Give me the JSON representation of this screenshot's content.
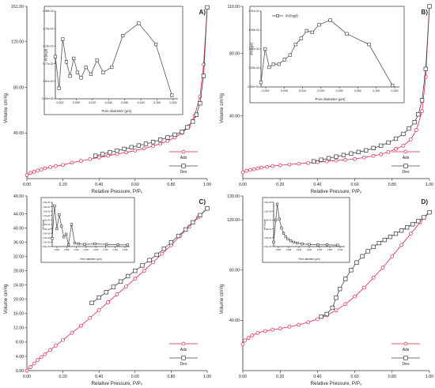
{
  "colors": {
    "ads": "#e0234a",
    "des": "#333333"
  },
  "chart_data": [
    {
      "type": "line",
      "panel_label": "A)",
      "xlabel": "Relative Pressure, P/P₀",
      "ylabel": "Volume cm³/g",
      "xlim": [
        0,
        1
      ],
      "ylim": [
        0,
        151
      ],
      "x_ticks": [
        "0.00",
        "0.20",
        "0.40",
        "0.60",
        "0.80",
        "1.00"
      ],
      "y_ticks": [
        {
          "v": 40,
          "t": "40.00"
        },
        {
          "v": 80,
          "t": "80.00"
        },
        {
          "v": 120,
          "t": "120.00"
        },
        {
          "v": 151,
          "t": "151.00"
        }
      ],
      "legend": {
        "position": "bottom-right",
        "ads": "Ads",
        "des": "Des"
      },
      "series": [
        {
          "key": "ads",
          "name": "Ads",
          "x": [
            0.0,
            0.02,
            0.04,
            0.06,
            0.08,
            0.1,
            0.13,
            0.16,
            0.2,
            0.25,
            0.3,
            0.35,
            0.4,
            0.45,
            0.5,
            0.55,
            0.6,
            0.65,
            0.7,
            0.74,
            0.78,
            0.82,
            0.86,
            0.9,
            0.93,
            0.96,
            0.98,
            1.0
          ],
          "y": [
            3,
            5,
            6,
            7,
            8,
            9,
            10,
            11,
            12,
            14,
            15.5,
            17,
            18.5,
            20,
            21.5,
            23,
            24.5,
            26.5,
            28.5,
            30.5,
            33,
            36,
            40,
            46,
            55,
            72,
            100,
            150
          ]
        },
        {
          "key": "des",
          "name": "Des",
          "x": [
            0.38,
            0.42,
            0.46,
            0.5,
            0.54,
            0.58,
            0.62,
            0.66,
            0.7,
            0.74,
            0.78,
            0.82,
            0.86,
            0.89,
            0.92,
            0.94,
            0.96,
            0.98,
            1.0
          ],
          "y": [
            20,
            21.5,
            23,
            24.5,
            26,
            27.5,
            29,
            30.5,
            32,
            34,
            36,
            38.5,
            41,
            45,
            50,
            56,
            66,
            90,
            150
          ]
        }
      ],
      "inset": {
        "ylabel": "dV(logd)",
        "xlabel": "Pore diameter (µm)",
        "y_ticks": [
          "2.88e-01",
          "1.73e-01",
          "1.15e-01",
          "5.77e-02",
          "3.51e-02",
          "0.00e+00"
        ],
        "x_ticks": [
          "0.002",
          "0.005",
          "0.010",
          "0.040",
          "0.050",
          "0.100",
          "0.200",
          "0.300"
        ],
        "points": [
          [
            0.0,
            0.48
          ],
          [
            0.03,
            0.12
          ],
          [
            0.06,
            0.68
          ],
          [
            0.09,
            0.42
          ],
          [
            0.12,
            0.26
          ],
          [
            0.15,
            0.46
          ],
          [
            0.18,
            0.3
          ],
          [
            0.21,
            0.24
          ],
          [
            0.25,
            0.36
          ],
          [
            0.29,
            0.28
          ],
          [
            0.34,
            0.44
          ],
          [
            0.39,
            0.3
          ],
          [
            0.46,
            0.36
          ],
          [
            0.55,
            0.72
          ],
          [
            0.68,
            0.86
          ],
          [
            0.82,
            0.62
          ],
          [
            0.95,
            0.04
          ]
        ]
      }
    },
    {
      "type": "line",
      "panel_label": "B)",
      "xlabel": "Relative Pressure, P/P₀",
      "ylabel": "Volume cm³/g",
      "xlim": [
        0,
        1
      ],
      "ylim": [
        0,
        110
      ],
      "x_ticks": [
        "0.00",
        "0.20",
        "0.40",
        "0.60",
        "0.80",
        "1.00"
      ],
      "y_ticks": [
        {
          "v": 40,
          "t": "40.00"
        },
        {
          "v": 80,
          "t": "80.00"
        },
        {
          "v": 110,
          "t": "110.00"
        }
      ],
      "legend": {
        "position": "bottom-right",
        "ads": "Ads",
        "des": "Des"
      },
      "series": [
        {
          "key": "ads",
          "name": "Ads",
          "x": [
            0.0,
            0.02,
            0.04,
            0.06,
            0.08,
            0.1,
            0.13,
            0.16,
            0.2,
            0.25,
            0.3,
            0.35,
            0.4,
            0.45,
            0.5,
            0.55,
            0.6,
            0.65,
            0.7,
            0.74,
            0.78,
            0.82,
            0.86,
            0.9,
            0.93,
            0.96,
            0.98,
            1.0
          ],
          "y": [
            4,
            5,
            5.5,
            6,
            6.5,
            7,
            7.5,
            8,
            8.5,
            9,
            9.5,
            10,
            10.5,
            11,
            11.5,
            12,
            12.5,
            13.5,
            14.5,
            15.5,
            17,
            19,
            21,
            25,
            31,
            43,
            65,
            110
          ]
        },
        {
          "key": "des",
          "name": "Des",
          "x": [
            0.38,
            0.42,
            0.46,
            0.5,
            0.54,
            0.58,
            0.62,
            0.66,
            0.7,
            0.74,
            0.78,
            0.82,
            0.86,
            0.89,
            0.92,
            0.94,
            0.96,
            0.98,
            1.0
          ],
          "y": [
            11,
            12,
            13,
            14,
            15,
            16,
            17,
            18,
            19.5,
            21,
            23,
            25.5,
            28.5,
            32,
            36,
            41,
            50,
            70,
            110
          ]
        }
      ],
      "inset": {
        "ylabel": "dV(logd)",
        "legend": "dV(logd)",
        "xlabel": "Pore diameter (µm)",
        "y_ticks": [
          "1.41e-01",
          "1.06e-01",
          "7.07e-02",
          "3.53e-02",
          "0.00e+00"
        ],
        "x_ticks": [
          "0.002",
          "0.005",
          "0.010",
          "0.020",
          "0.030",
          "0.050",
          "0.100",
          "0.200"
        ],
        "points": [
          [
            0.0,
            0.06
          ],
          [
            0.03,
            0.5
          ],
          [
            0.06,
            0.26
          ],
          [
            0.09,
            0.3
          ],
          [
            0.13,
            0.3
          ],
          [
            0.17,
            0.36
          ],
          [
            0.21,
            0.42
          ],
          [
            0.25,
            0.56
          ],
          [
            0.29,
            0.64
          ],
          [
            0.33,
            0.74
          ],
          [
            0.37,
            0.72
          ],
          [
            0.42,
            0.82
          ],
          [
            0.5,
            0.88
          ],
          [
            0.62,
            0.7
          ],
          [
            0.78,
            0.56
          ],
          [
            0.95,
            0.02
          ]
        ]
      }
    },
    {
      "type": "line",
      "panel_label": "C)",
      "xlabel": "Relative Pressure, P/P₀",
      "ylabel": "Volume cm³/g",
      "xlim": [
        0,
        1
      ],
      "ylim": [
        0,
        49
      ],
      "x_ticks": [
        "0.00",
        "0.20",
        "0.40",
        "0.60",
        "0.80",
        "1.00"
      ],
      "y_ticks": [
        {
          "v": 0,
          "t": "0.00"
        },
        {
          "v": 4,
          "t": "4.00"
        },
        {
          "v": 8,
          "t": "8.00"
        },
        {
          "v": 12,
          "t": "12.00"
        },
        {
          "v": 16,
          "t": "16.00"
        },
        {
          "v": 20,
          "t": "20.00"
        },
        {
          "v": 24,
          "t": "24.00"
        },
        {
          "v": 28,
          "t": "28.00"
        },
        {
          "v": 32,
          "t": "32.00"
        },
        {
          "v": 36,
          "t": "36.00"
        },
        {
          "v": 40,
          "t": "40.00"
        },
        {
          "v": 44,
          "t": "44.00"
        },
        {
          "v": 49,
          "t": "49.00"
        }
      ],
      "legend": {
        "position": "bottom-right",
        "ads": "Ads",
        "des": "Des"
      },
      "series": [
        {
          "key": "ads",
          "name": "Ads",
          "x": [
            0.0,
            0.02,
            0.04,
            0.06,
            0.08,
            0.1,
            0.13,
            0.16,
            0.2,
            0.25,
            0.3,
            0.35,
            0.4,
            0.45,
            0.5,
            0.55,
            0.6,
            0.65,
            0.7,
            0.75,
            0.8,
            0.85,
            0.9,
            0.95,
            1.0
          ],
          "y": [
            0,
            1,
            2,
            3,
            3.8,
            4.6,
            5.8,
            7,
            8.6,
            10.6,
            12.6,
            14.8,
            17,
            19.2,
            21.4,
            23.6,
            25.8,
            28,
            30.4,
            32.8,
            35.2,
            37.8,
            40.4,
            43,
            45.5
          ]
        },
        {
          "key": "des",
          "name": "Des",
          "x": [
            0.36,
            0.4,
            0.44,
            0.48,
            0.52,
            0.56,
            0.6,
            0.64,
            0.68,
            0.72,
            0.76,
            0.8,
            0.84,
            0.88,
            0.92,
            0.96,
            1.0
          ],
          "y": [
            19,
            20.5,
            22,
            23.5,
            25,
            26.5,
            28,
            29.5,
            31,
            32.5,
            34.2,
            36,
            37.8,
            39.6,
            41.6,
            43.6,
            45.5
          ]
        }
      ],
      "inset": {
        "ylabel": "dV(logd)",
        "xlabel": "Pore diameter (µm)",
        "y_ticks": [
          "2.00e-01",
          "1.80e-01",
          "1.60e-01",
          "1.40e-01",
          "1.20e-01",
          "1.00e-01",
          "8.00e-02",
          "6.00e-02",
          "4.00e-02",
          "2.00e-02",
          "0.00e+00"
        ],
        "x_ticks": [
          "0.002",
          "0.005",
          "0.010",
          "0.020",
          "0.030",
          "0.100",
          "0.150",
          "0.200"
        ],
        "points": [
          [
            0.0,
            0.18
          ],
          [
            0.03,
            0.92
          ],
          [
            0.06,
            0.4
          ],
          [
            0.09,
            0.72
          ],
          [
            0.12,
            0.46
          ],
          [
            0.15,
            0.22
          ],
          [
            0.18,
            0.28
          ],
          [
            0.21,
            0.04
          ],
          [
            0.25,
            0.5
          ],
          [
            0.29,
            0.08
          ],
          [
            0.34,
            0.06
          ],
          [
            0.42,
            0.05
          ],
          [
            0.55,
            0.06
          ],
          [
            0.7,
            0.05
          ],
          [
            0.85,
            0.04
          ],
          [
            0.97,
            0.04
          ]
        ]
      }
    },
    {
      "type": "line",
      "panel_label": "D)",
      "xlabel": "Relative Pressure, P/P₀",
      "ylabel": "Volume cm³/g",
      "xlim": [
        0,
        1
      ],
      "ylim": [
        0,
        139
      ],
      "x_ticks": [
        "0.00",
        "0.20",
        "0.40",
        "0.60",
        "0.80",
        "1.00"
      ],
      "y_ticks": [
        {
          "v": 40,
          "t": "40.00"
        },
        {
          "v": 80,
          "t": "80.00"
        },
        {
          "v": 120,
          "t": "120.00"
        },
        {
          "v": 139,
          "t": "139.00"
        }
      ],
      "legend": {
        "position": "bottom-right",
        "ads": "Ads",
        "des": "Des"
      },
      "series": [
        {
          "key": "ads",
          "name": "Ads",
          "x": [
            0.0,
            0.01,
            0.03,
            0.05,
            0.08,
            0.12,
            0.16,
            0.2,
            0.25,
            0.3,
            0.35,
            0.4,
            0.45,
            0.5,
            0.55,
            0.6,
            0.65,
            0.7,
            0.75,
            0.8,
            0.85,
            0.9,
            0.95,
            1.0
          ],
          "y": [
            21,
            24,
            26,
            28,
            30,
            31.5,
            32.5,
            33.5,
            35,
            36.5,
            38.5,
            41,
            44,
            48,
            53,
            59,
            66,
            74,
            82,
            91,
            100,
            109,
            118,
            126
          ]
        },
        {
          "key": "des",
          "name": "Des",
          "x": [
            0.42,
            0.45,
            0.48,
            0.5,
            0.52,
            0.55,
            0.58,
            0.61,
            0.64,
            0.67,
            0.7,
            0.73,
            0.76,
            0.79,
            0.82,
            0.85,
            0.88,
            0.91,
            0.94,
            0.97,
            1.0
          ],
          "y": [
            43,
            45,
            50,
            58,
            65,
            73,
            80,
            86,
            91,
            95,
            98.5,
            101.5,
            104,
            106.5,
            109,
            111.5,
            114,
            116.5,
            119,
            122,
            126
          ]
        }
      ],
      "inset": {
        "ylabel": "dV(logd)",
        "xlabel": "Pore diameter (µm)",
        "y_ticks": [
          "1.50e+00",
          "1.20e+00",
          "9.00e-01",
          "6.00e-01",
          "3.00e-01",
          "0.00e+00"
        ],
        "x_ticks": [
          "0.002",
          "0.005",
          "0.010",
          "0.020",
          "0.030",
          "0.050",
          "0.100"
        ],
        "points": [
          [
            0.0,
            0.1
          ],
          [
            0.03,
            0.6
          ],
          [
            0.05,
            0.96
          ],
          [
            0.08,
            0.62
          ],
          [
            0.11,
            0.42
          ],
          [
            0.14,
            0.3
          ],
          [
            0.17,
            0.22
          ],
          [
            0.2,
            0.17
          ],
          [
            0.24,
            0.13
          ],
          [
            0.28,
            0.1
          ],
          [
            0.33,
            0.08
          ],
          [
            0.4,
            0.06
          ],
          [
            0.5,
            0.05
          ],
          [
            0.62,
            0.04
          ],
          [
            0.75,
            0.04
          ],
          [
            0.9,
            0.03
          ]
        ]
      }
    }
  ]
}
